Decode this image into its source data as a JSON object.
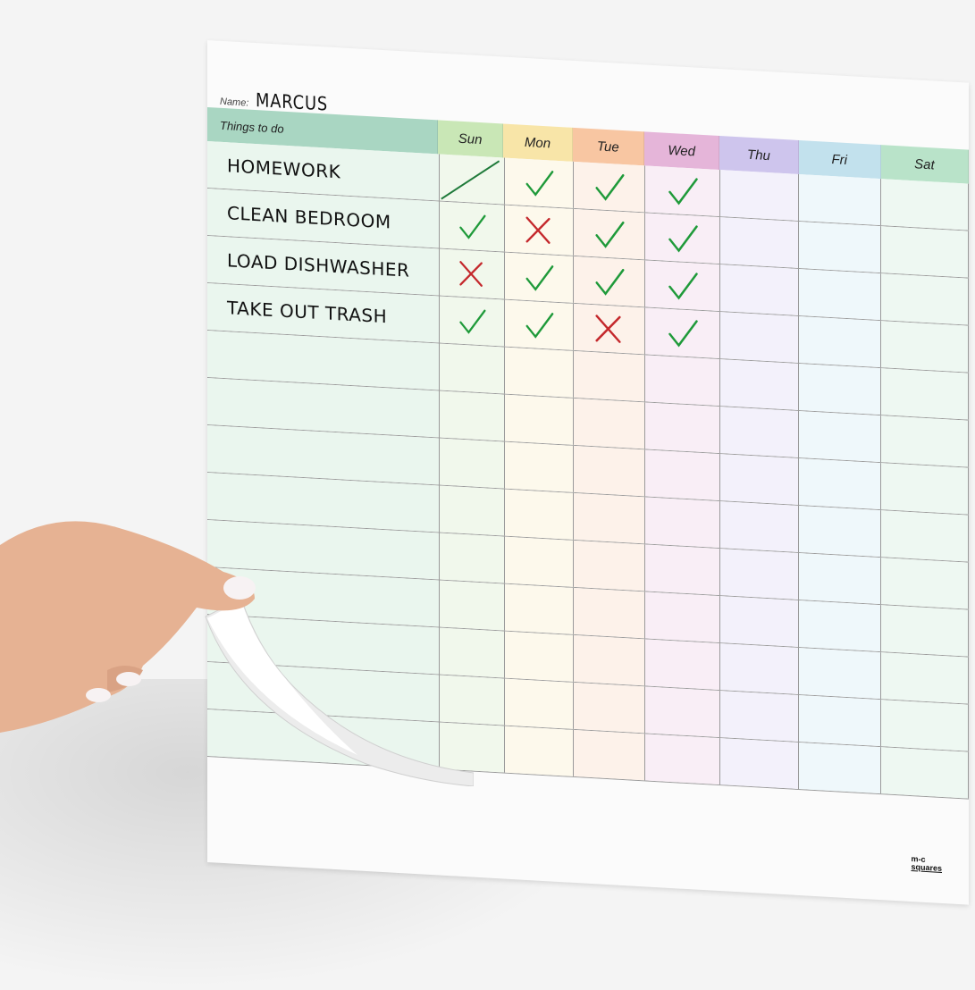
{
  "chart": {
    "name_label": "Name:",
    "name_value": "MARCUS",
    "task_header": "Things to do",
    "days": [
      "Sun",
      "Mon",
      "Tue",
      "Wed",
      "Thu",
      "Fri",
      "Sat"
    ],
    "colors": {
      "task_header": "#a9d6c2",
      "day_headers": [
        "#c9e7b6",
        "#f8e5a8",
        "#f8c6a2",
        "#e5b5d9",
        "#cec5ed",
        "#c2e1ed",
        "#b9e3c9"
      ],
      "day_body": [
        "#f1f8ec",
        "#fdf9ec",
        "#fdf2ea",
        "#f9eef6",
        "#f3f1fb",
        "#eff8fb",
        "#eef8f2"
      ],
      "task_body": "#eaf6ee",
      "check": "#1f9a3a",
      "cross": "#c4282c"
    },
    "tasks": [
      {
        "label": "HOMEWORK",
        "marks": [
          "slash",
          "check",
          "check",
          "check",
          "",
          "",
          ""
        ]
      },
      {
        "label": "CLEAN BEDROOM",
        "marks": [
          "check",
          "cross",
          "check",
          "check",
          "",
          "",
          ""
        ]
      },
      {
        "label": "LOAD DISHWASHER",
        "marks": [
          "cross",
          "check",
          "check",
          "check",
          "",
          "",
          ""
        ]
      },
      {
        "label": "TAKE OUT TRASH",
        "marks": [
          "check",
          "check",
          "cross",
          "check",
          "",
          "",
          ""
        ]
      },
      {
        "label": "",
        "marks": []
      },
      {
        "label": "",
        "marks": []
      },
      {
        "label": "",
        "marks": []
      },
      {
        "label": "",
        "marks": []
      },
      {
        "label": "",
        "marks": []
      },
      {
        "label": "",
        "marks": []
      },
      {
        "label": "",
        "marks": []
      },
      {
        "label": "",
        "marks": []
      },
      {
        "label": "",
        "marks": []
      }
    ]
  },
  "logo": {
    "line1": "m-c",
    "line2": "squares"
  }
}
